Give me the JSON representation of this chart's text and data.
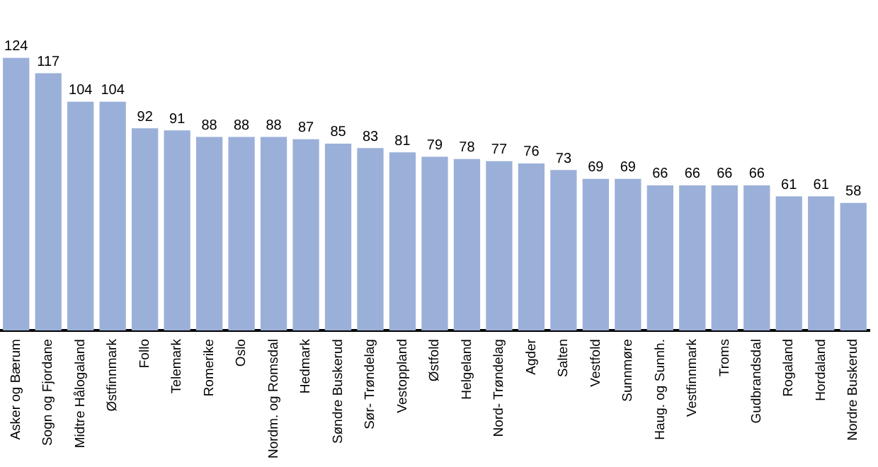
{
  "chart_data": {
    "type": "bar",
    "categories": [
      "Asker og Bærum",
      "Sogn og Fjordane",
      "Midtre Hålogaland",
      "Østfinnmark",
      "Follo",
      "Telemark",
      "Romerike",
      "Oslo",
      "Nordm. og Romsdal",
      "Hedmark",
      "Søndre Buskerud",
      "Sør- Trøndelag",
      "Vestoppland",
      "Østfold",
      "Helgeland",
      "Nord- Trøndelag",
      "Agder",
      "Salten",
      "Vestfold",
      "Sunnmøre",
      "Haug. og Sunnh.",
      "Vestfinnmark",
      "Troms",
      "Gudbrandsdal",
      "Rogaland",
      "Hordaland",
      "Nordre Buskerud"
    ],
    "values": [
      124,
      117,
      104,
      104,
      92,
      91,
      88,
      88,
      88,
      87,
      85,
      83,
      81,
      79,
      78,
      77,
      76,
      73,
      69,
      69,
      66,
      66,
      66,
      66,
      61,
      61,
      58
    ],
    "color": "#9bb0d9",
    "tick_labels": "x",
    "data_labels": true,
    "grid": false,
    "legend": false
  }
}
